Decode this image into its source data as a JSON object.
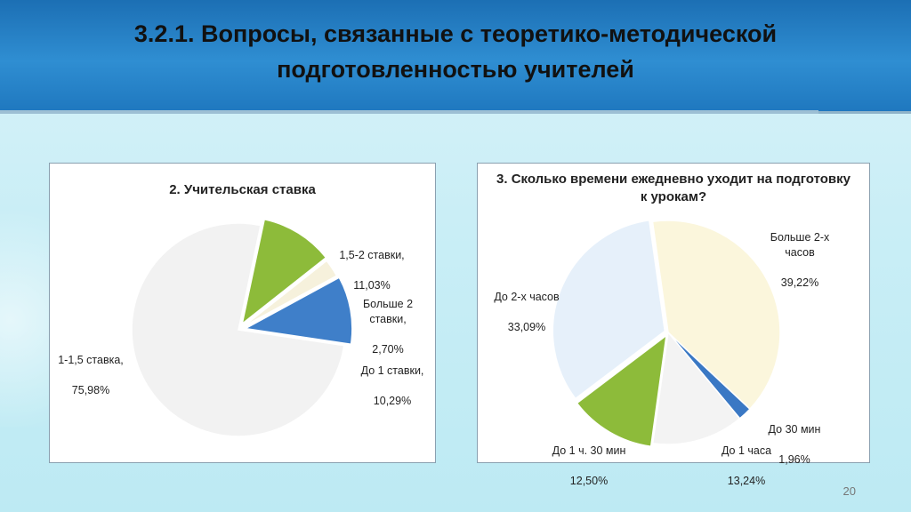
{
  "slide": {
    "title": "3.2.1. Вопросы, связанные с теоретико-методической подготовленностью учителей",
    "page_number": "20"
  },
  "chart_data": [
    {
      "type": "pie",
      "title": "2. Учительская ставка",
      "slices": [
        {
          "label": "1,5-2 ставки,",
          "value_text": "11,03%",
          "value": 11.03,
          "color": "#8dbb3a"
        },
        {
          "label": "Больше 2 ставки,",
          "value_text": "2,70%",
          "value": 2.7,
          "color": "#f6f1dc"
        },
        {
          "label": "До 1 ставки,",
          "value_text": "10,29%",
          "value": 10.29,
          "color": "#3f7fc9"
        },
        {
          "label": "1-1,5 ставка,",
          "value_text": "75,98%",
          "value": 75.98,
          "color": "#f2f2f2"
        }
      ]
    },
    {
      "type": "pie",
      "title": "3. Сколько времени ежедневно уходит на подготовку к урокам?",
      "slices": [
        {
          "label": "Больше 2-х часов",
          "value_text": "39,22%",
          "value": 39.22,
          "color": "#fbf6dc"
        },
        {
          "label": "До 30 мин",
          "value_text": "1,96%",
          "value": 1.96,
          "color": "#3a78c4"
        },
        {
          "label": "До 1 часа",
          "value_text": "13,24%",
          "value": 13.24,
          "color": "#f3f3f3"
        },
        {
          "label": "До 1 ч. 30 мин",
          "value_text": "12,50%",
          "value": 12.5,
          "color": "#8dbb3a"
        },
        {
          "label": "До 2-х часов",
          "value_text": "33,09%",
          "value": 33.09,
          "color": "#e6f0fa"
        }
      ]
    }
  ]
}
